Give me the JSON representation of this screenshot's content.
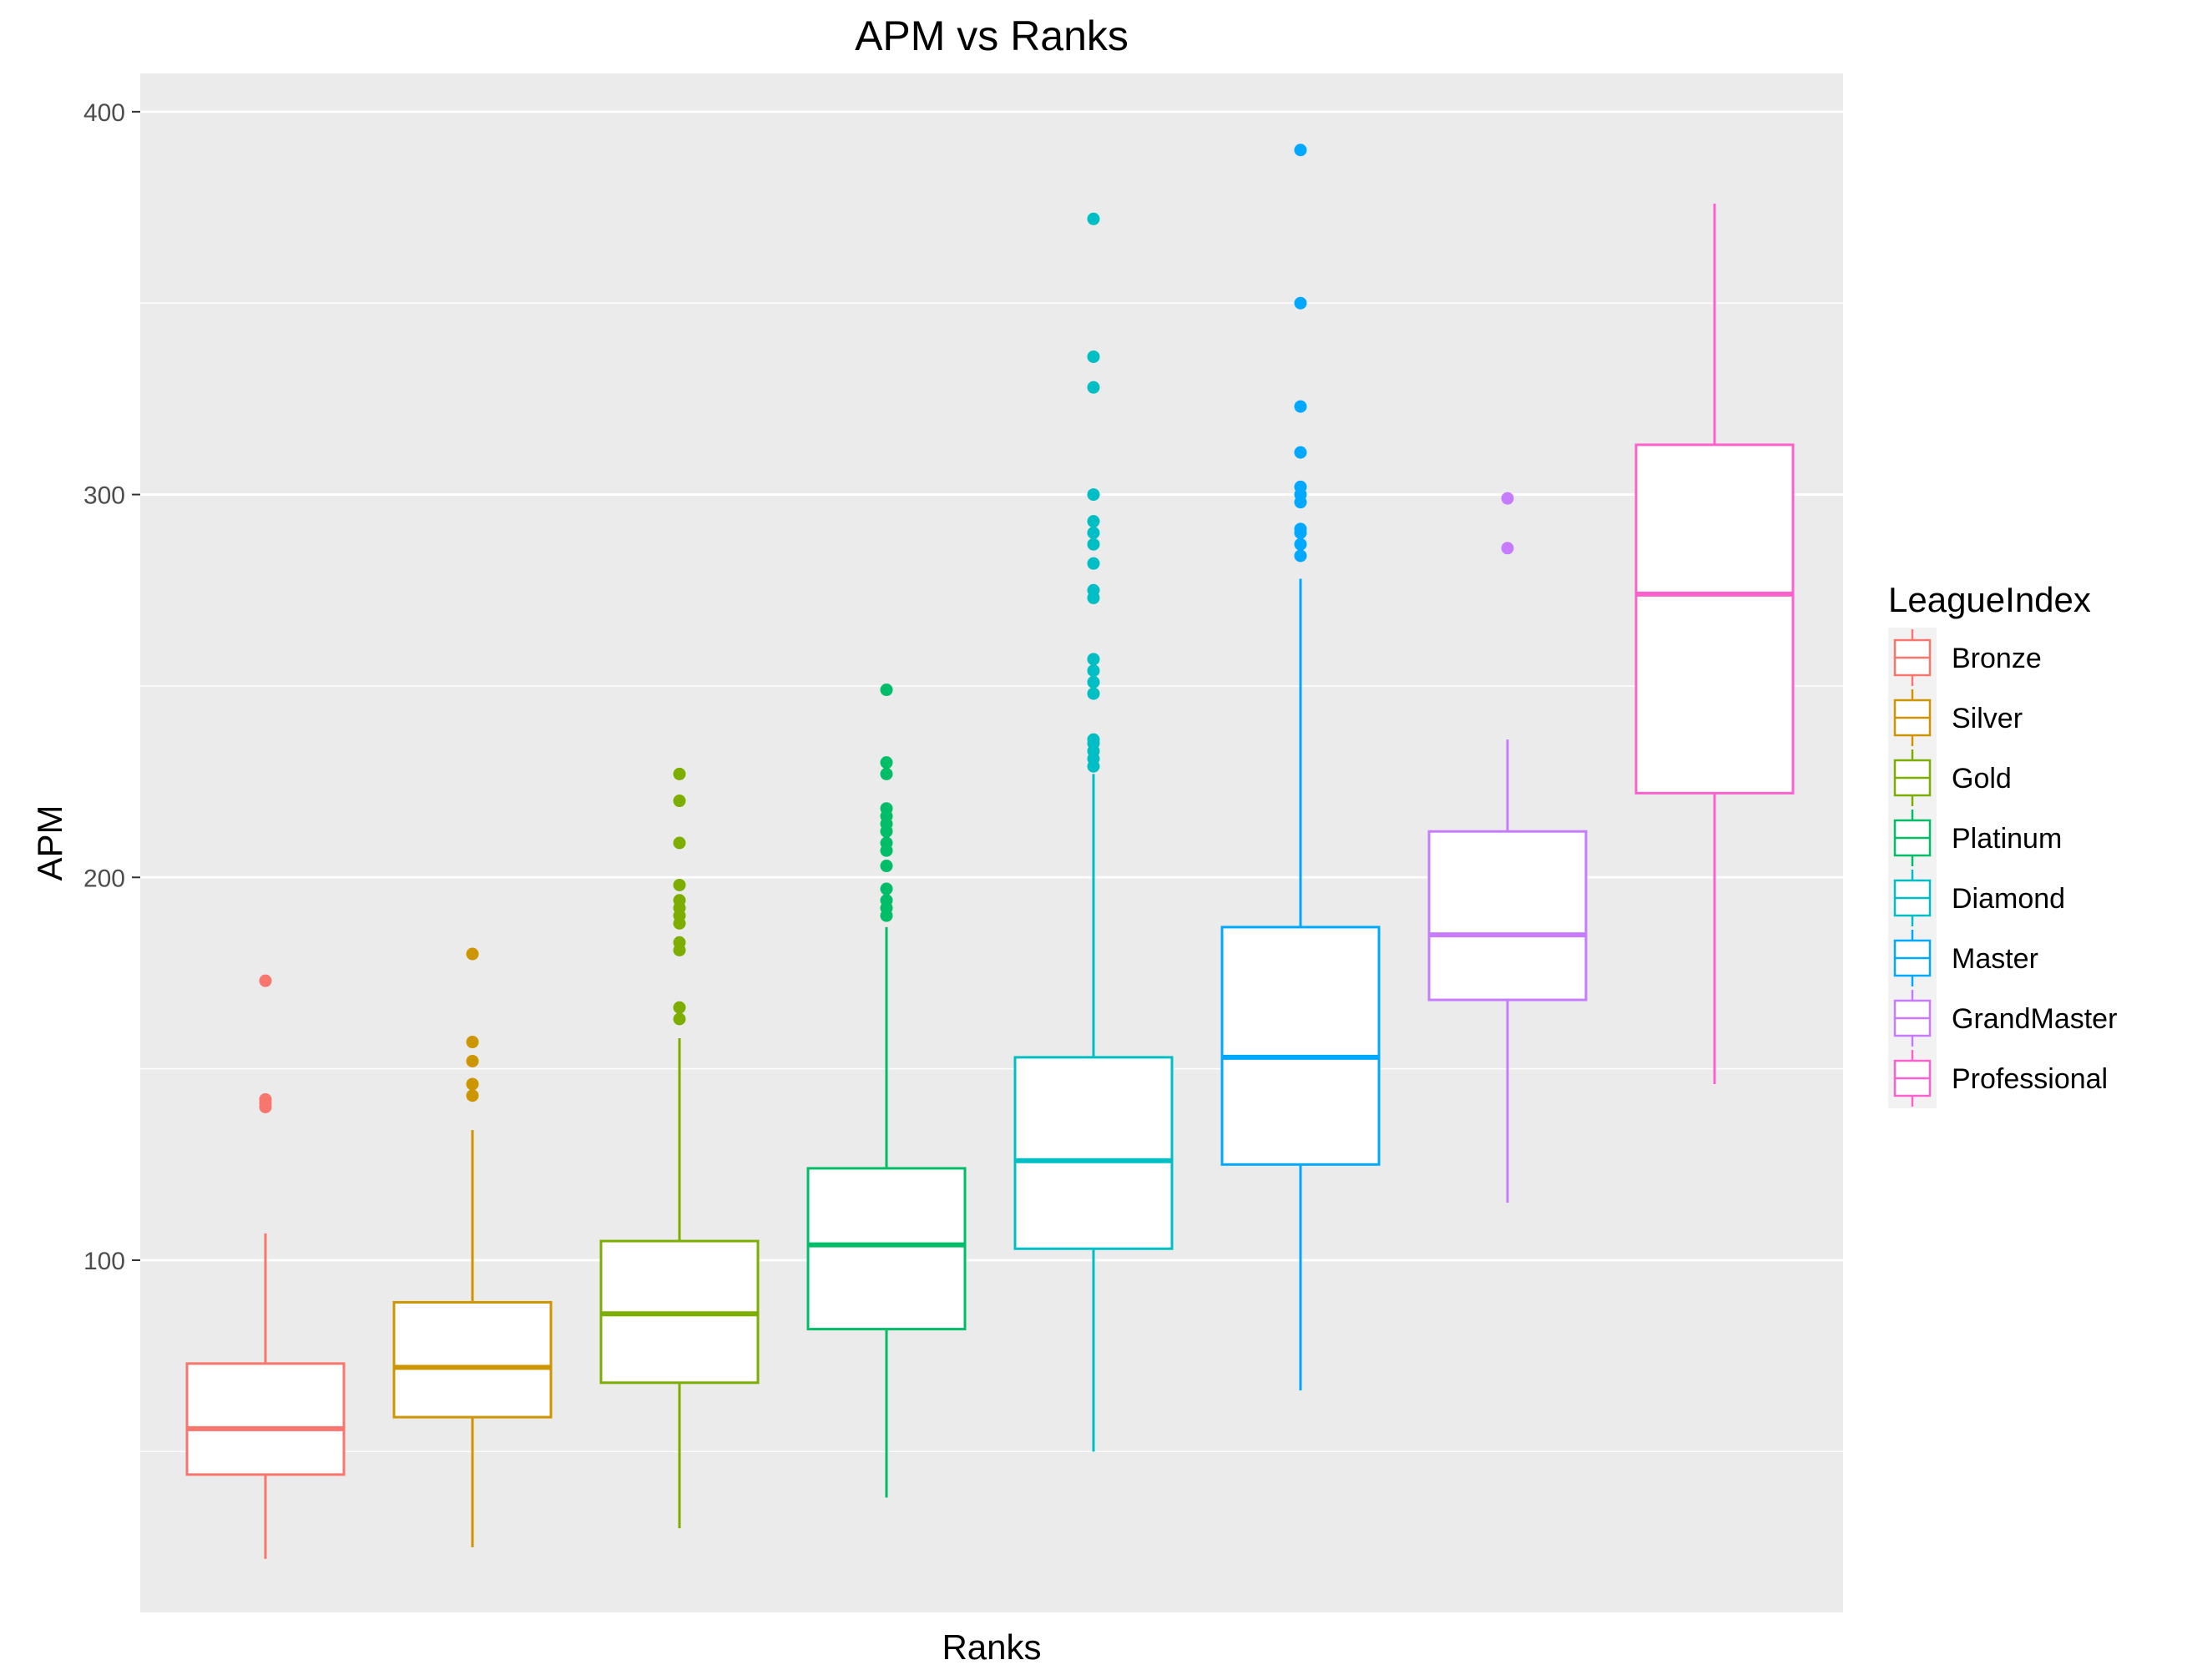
{
  "chart_data": {
    "type": "box",
    "title": "APM vs Ranks",
    "xlabel": "Ranks",
    "ylabel": "APM",
    "ylim": [
      8,
      410
    ],
    "yticks": [
      100,
      200,
      300,
      400
    ],
    "x_tick_labels": [],
    "grid": true,
    "legend": {
      "title": "LeagueIndex",
      "position": "right"
    },
    "series": [
      {
        "name": "Bronze",
        "color": "#F8766D",
        "whisker_low": 22,
        "q1": 44,
        "median": 56,
        "q3": 73,
        "whisker_high": 107,
        "outliers": [
          140,
          141,
          142,
          173
        ]
      },
      {
        "name": "Silver",
        "color": "#CD9600",
        "whisker_low": 25,
        "q1": 59,
        "median": 72,
        "q3": 89,
        "whisker_high": 134,
        "outliers": [
          143,
          146,
          152,
          157,
          180
        ]
      },
      {
        "name": "Gold",
        "color": "#7CAE00",
        "whisker_low": 30,
        "q1": 68,
        "median": 86,
        "q3": 105,
        "whisker_high": 158,
        "outliers": [
          163,
          166,
          181,
          183,
          188,
          190,
          192,
          194,
          198,
          209,
          220,
          227
        ]
      },
      {
        "name": "Platinum",
        "color": "#00BE67",
        "whisker_low": 38,
        "q1": 82,
        "median": 104,
        "q3": 124,
        "whisker_high": 187,
        "outliers": [
          190,
          192,
          194,
          197,
          203,
          207,
          209,
          212,
          214,
          216,
          218,
          227,
          230,
          249
        ]
      },
      {
        "name": "Diamond",
        "color": "#00BFC4",
        "whisker_low": 50,
        "q1": 103,
        "median": 126,
        "q3": 153,
        "whisker_high": 227,
        "outliers": [
          229,
          231,
          233,
          235,
          236,
          248,
          251,
          254,
          257,
          273,
          275,
          282,
          287,
          290,
          293,
          300,
          328,
          336,
          372
        ]
      },
      {
        "name": "Master",
        "color": "#00A9FF",
        "whisker_low": 66,
        "q1": 125,
        "median": 153,
        "q3": 187,
        "whisker_high": 278,
        "outliers": [
          284,
          287,
          290,
          291,
          298,
          300,
          302,
          311,
          323,
          350,
          390
        ]
      },
      {
        "name": "GrandMaster",
        "color": "#C77CFF",
        "whisker_low": 115,
        "q1": 168,
        "median": 185,
        "q3": 212,
        "whisker_high": 236,
        "outliers": [
          286,
          299
        ]
      },
      {
        "name": "Professional",
        "color": "#FF61CC",
        "whisker_low": 146,
        "q1": 222,
        "median": 274,
        "q3": 313,
        "whisker_high": 376,
        "outliers": []
      }
    ]
  }
}
